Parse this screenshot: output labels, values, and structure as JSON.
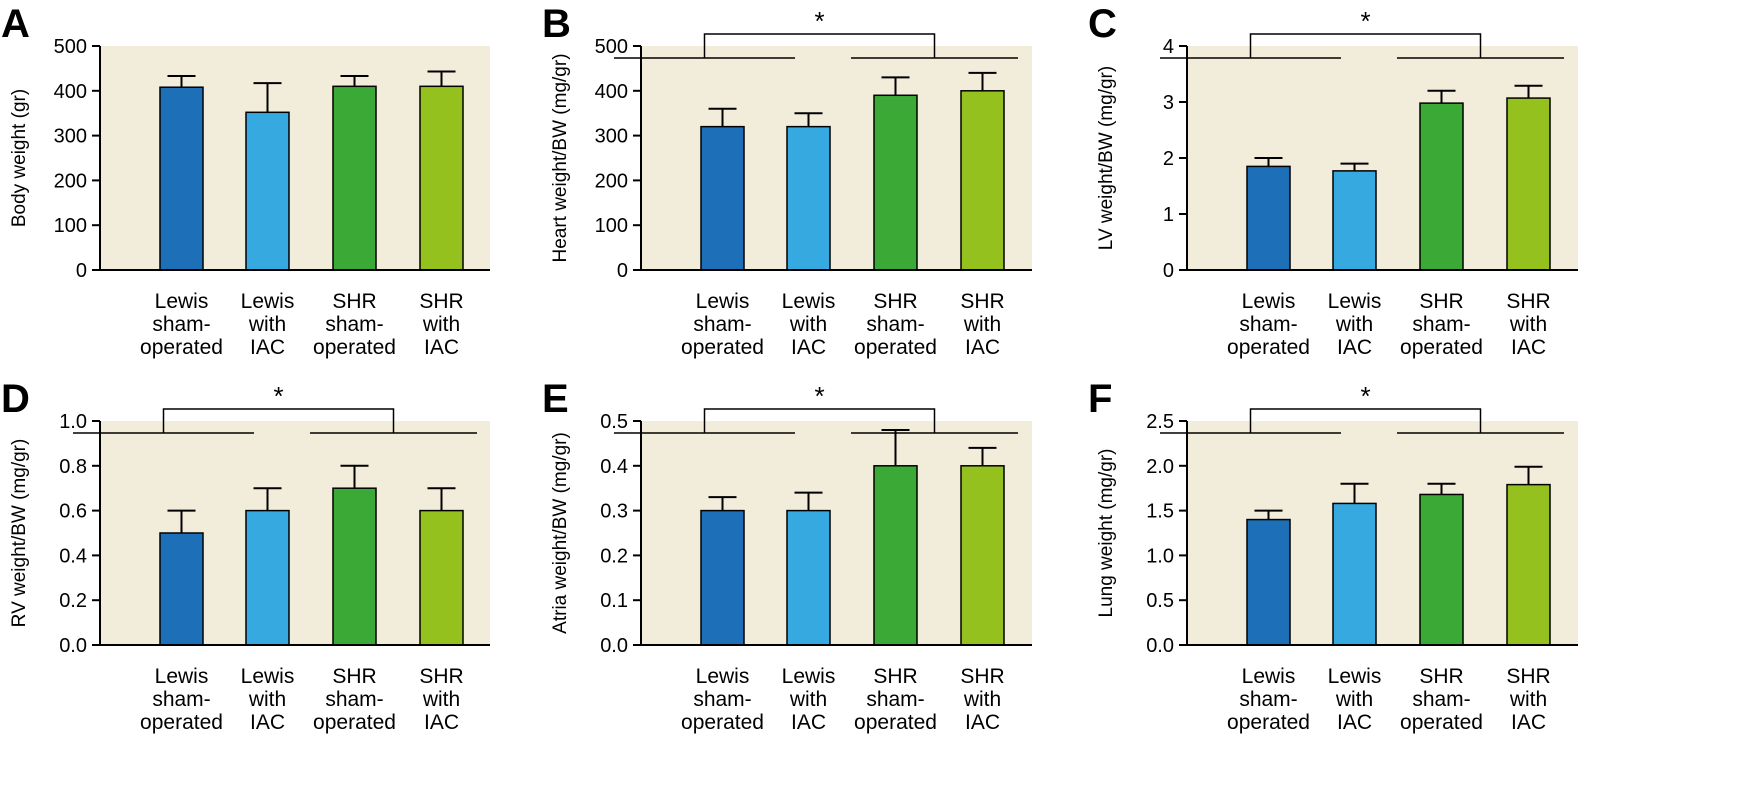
{
  "chart_data": [
    {
      "panel": "A",
      "type": "bar",
      "ylabel": "Body weight (gr)",
      "ylim": [
        0,
        500
      ],
      "yticks": [
        "0",
        "100",
        "200",
        "300",
        "400",
        "500"
      ],
      "categories": [
        [
          "Lewis",
          "sham-",
          "operated"
        ],
        [
          "Lewis",
          "with",
          "IAC"
        ],
        [
          "SHR",
          "sham-",
          "operated"
        ],
        [
          "SHR",
          "with",
          "IAC"
        ]
      ],
      "values": [
        408,
        352,
        410,
        410
      ],
      "errors": [
        25,
        65,
        23,
        33
      ],
      "significance": null
    },
    {
      "panel": "B",
      "type": "bar",
      "ylabel": "Heart weight/BW (mg/gr)",
      "ylim": [
        0,
        500
      ],
      "yticks": [
        "0",
        "100",
        "200",
        "300",
        "400",
        "500"
      ],
      "categories": [
        [
          "Lewis",
          "sham-",
          "operated"
        ],
        [
          "Lewis",
          "with",
          "IAC"
        ],
        [
          "SHR",
          "sham-",
          "operated"
        ],
        [
          "SHR",
          "with",
          "IAC"
        ]
      ],
      "values": [
        320,
        320,
        390,
        400
      ],
      "errors": [
        40,
        30,
        40,
        40
      ],
      "significance": "*"
    },
    {
      "panel": "C",
      "type": "bar",
      "ylabel": "LV weight/BW (mg/gr)",
      "ylim": [
        0,
        4
      ],
      "yticks": [
        "0",
        "1",
        "2",
        "3",
        "4"
      ],
      "categories": [
        [
          "Lewis",
          "sham-",
          "operated"
        ],
        [
          "Lewis",
          "with",
          "IAC"
        ],
        [
          "SHR",
          "sham-",
          "operated"
        ],
        [
          "SHR",
          "with",
          "IAC"
        ]
      ],
      "values": [
        1.85,
        1.77,
        2.98,
        3.07
      ],
      "errors": [
        0.15,
        0.13,
        0.22,
        0.22
      ],
      "significance": "*"
    },
    {
      "panel": "D",
      "type": "bar",
      "ylabel": "RV weight/BW (mg/gr)",
      "ylim": [
        0,
        1.0
      ],
      "yticks": [
        "0.0",
        "0.2",
        "0.4",
        "0.6",
        "0.8",
        "1.0"
      ],
      "categories": [
        [
          "Lewis",
          "sham-",
          "operated"
        ],
        [
          "Lewis",
          "with",
          "IAC"
        ],
        [
          "SHR",
          "sham-",
          "operated"
        ],
        [
          "SHR",
          "with",
          "IAC"
        ]
      ],
      "values": [
        0.5,
        0.6,
        0.7,
        0.6
      ],
      "errors": [
        0.1,
        0.1,
        0.1,
        0.1
      ],
      "significance": "*"
    },
    {
      "panel": "E",
      "type": "bar",
      "ylabel": "Atria weight/BW (mg/gr)",
      "ylim": [
        0,
        0.5
      ],
      "yticks": [
        "0.0",
        "0.1",
        "0.2",
        "0.3",
        "0.4",
        "0.5"
      ],
      "categories": [
        [
          "Lewis",
          "sham-",
          "operated"
        ],
        [
          "Lewis",
          "with",
          "IAC"
        ],
        [
          "SHR",
          "sham-",
          "operated"
        ],
        [
          "SHR",
          "with",
          "IAC"
        ]
      ],
      "values": [
        0.3,
        0.3,
        0.4,
        0.4
      ],
      "errors": [
        0.03,
        0.04,
        0.08,
        0.04
      ],
      "significance": "*"
    },
    {
      "panel": "F",
      "type": "bar",
      "ylabel": "Lung weight (mg/gr)",
      "ylim": [
        0,
        2.5
      ],
      "yticks": [
        "0.0",
        "0.5",
        "1.0",
        "1.5",
        "2.0",
        "2.5"
      ],
      "categories": [
        [
          "Lewis",
          "sham-",
          "operated"
        ],
        [
          "Lewis",
          "with",
          "IAC"
        ],
        [
          "SHR",
          "sham-",
          "operated"
        ],
        [
          "SHR",
          "with",
          "IAC"
        ]
      ],
      "values": [
        1.4,
        1.58,
        1.68,
        1.79
      ],
      "errors": [
        0.1,
        0.22,
        0.12,
        0.2
      ],
      "significance": "*"
    }
  ],
  "colors": {
    "plot_background": "#f2eddb",
    "bars": [
      "#1d6fb8",
      "#36a9e1",
      "#3aa935",
      "#95c11f"
    ],
    "axis": "#000000"
  }
}
